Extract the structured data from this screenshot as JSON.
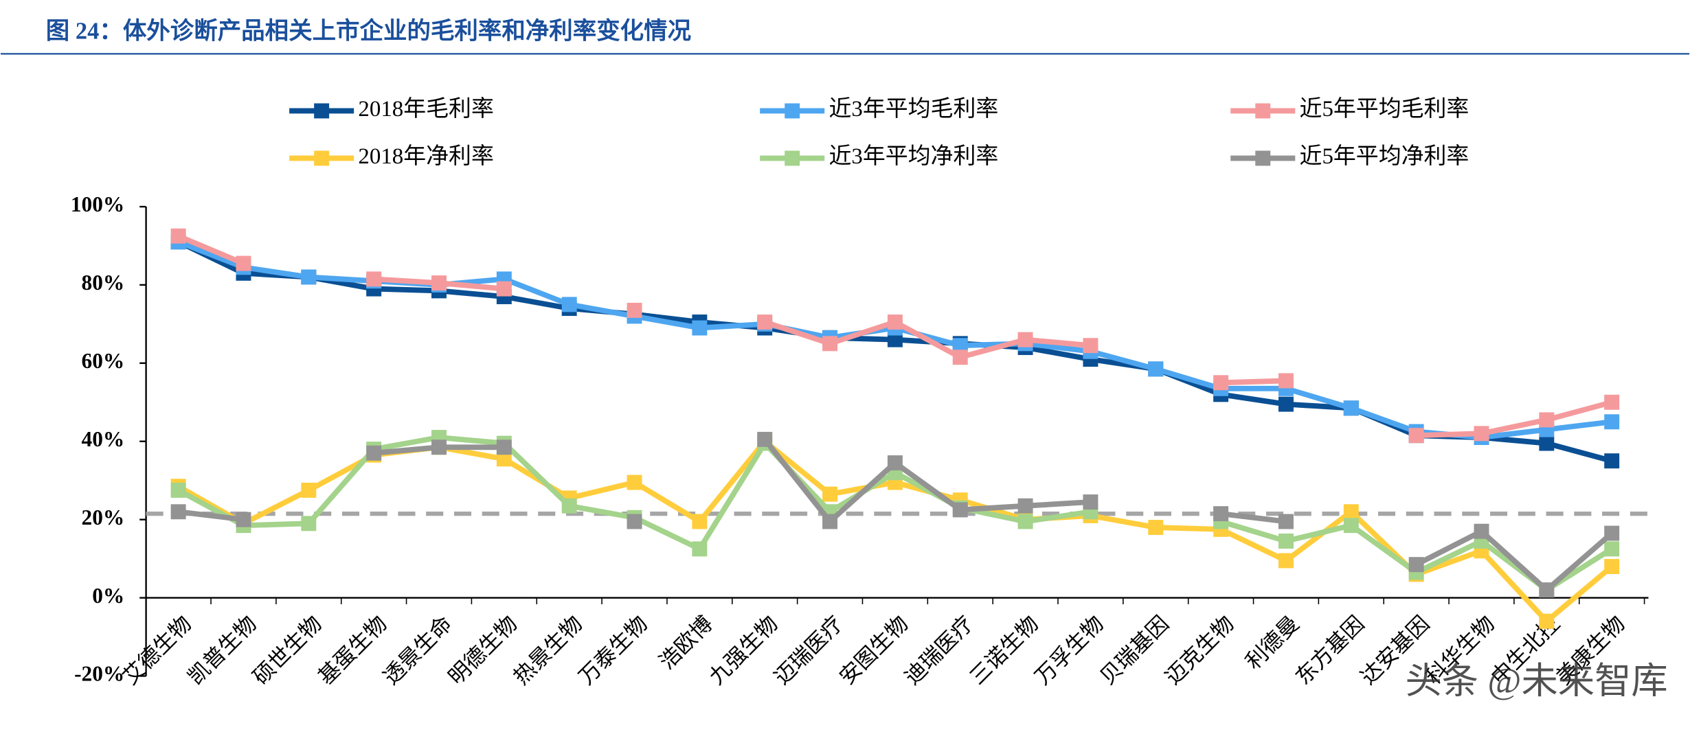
{
  "chart_data": {
    "type": "line",
    "title": "图 24：体外诊断产品相关上市企业的毛利率和净利率变化情况",
    "watermark": "头条 @未来智库",
    "categories": [
      "艾德生物",
      "凯普生物",
      "硕世生物",
      "基蛋生物",
      "透景生命",
      "明德生物",
      "热景生物",
      "万泰生物",
      "浩欧博",
      "九强生物",
      "迈瑞医疗",
      "安图生物",
      "迪瑞医疗",
      "三诺生物",
      "万孚生物",
      "贝瑞基因",
      "迈克生物",
      "利德曼",
      "东方基因",
      "达安基因",
      "科华生物",
      "中生北控",
      "美康生物"
    ],
    "series": [
      {
        "name": "2018年毛利率",
        "color": "#0a4f93",
        "values": [
          91,
          83,
          82,
          79,
          78.5,
          77,
          74,
          72.5,
          70.5,
          69,
          66.5,
          66,
          65,
          64,
          61,
          58.5,
          52,
          49.5,
          48.5,
          41.5,
          41,
          39.5,
          35
        ]
      },
      {
        "name": "近3年平均毛利率",
        "color": "#4ea6f0",
        "values": [
          91,
          84.5,
          82,
          81,
          80,
          81.5,
          75,
          72,
          69,
          70,
          66.5,
          69,
          64.5,
          65,
          63,
          58.5,
          53.5,
          53.5,
          48.5,
          42.5,
          41,
          43,
          45
        ]
      },
      {
        "name": "近5年平均毛利率",
        "color": "#f59a9c",
        "values": [
          92.5,
          85.5,
          null,
          81.5,
          80.5,
          79,
          null,
          73.5,
          null,
          70.5,
          65,
          70.5,
          61.5,
          66,
          64.5,
          null,
          55,
          55.5,
          null,
          41.5,
          42,
          45.5,
          50
        ]
      },
      {
        "name": "2018年净利率",
        "color": "#ffcd3c",
        "values": [
          28.5,
          19,
          27.5,
          36.5,
          38.5,
          35.5,
          25.5,
          29.5,
          19.5,
          40,
          26.5,
          29.5,
          25,
          20,
          21,
          18,
          17.5,
          9.5,
          22,
          6,
          12,
          -6,
          8
        ]
      },
      {
        "name": "近3年平均净利率",
        "color": "#a4d38b",
        "values": [
          27.5,
          18.5,
          19,
          38,
          41,
          39.5,
          23.5,
          20.5,
          12.5,
          39.5,
          22,
          32,
          23,
          19.5,
          22,
          null,
          19.5,
          14.5,
          18.5,
          6.5,
          14.5,
          2,
          12.5
        ]
      },
      {
        "name": "近5年平均净利率",
        "color": "#939393",
        "values": [
          22,
          20,
          null,
          37,
          38.5,
          38.5,
          null,
          19.5,
          null,
          40.5,
          19.5,
          34.5,
          22.5,
          23.5,
          24.5,
          null,
          21.5,
          19.5,
          null,
          8.5,
          17,
          2,
          16.5
        ]
      }
    ],
    "reference_line": 21.5,
    "ylim": [
      -20,
      100
    ],
    "yticks": [
      {
        "value": -20,
        "label": "-20%"
      },
      {
        "value": 0,
        "label": "0%"
      },
      {
        "value": 20,
        "label": "20%"
      },
      {
        "value": 40,
        "label": "40%"
      },
      {
        "value": 60,
        "label": "60%"
      },
      {
        "value": 80,
        "label": "80%"
      },
      {
        "value": 100,
        "label": "100%"
      }
    ]
  }
}
